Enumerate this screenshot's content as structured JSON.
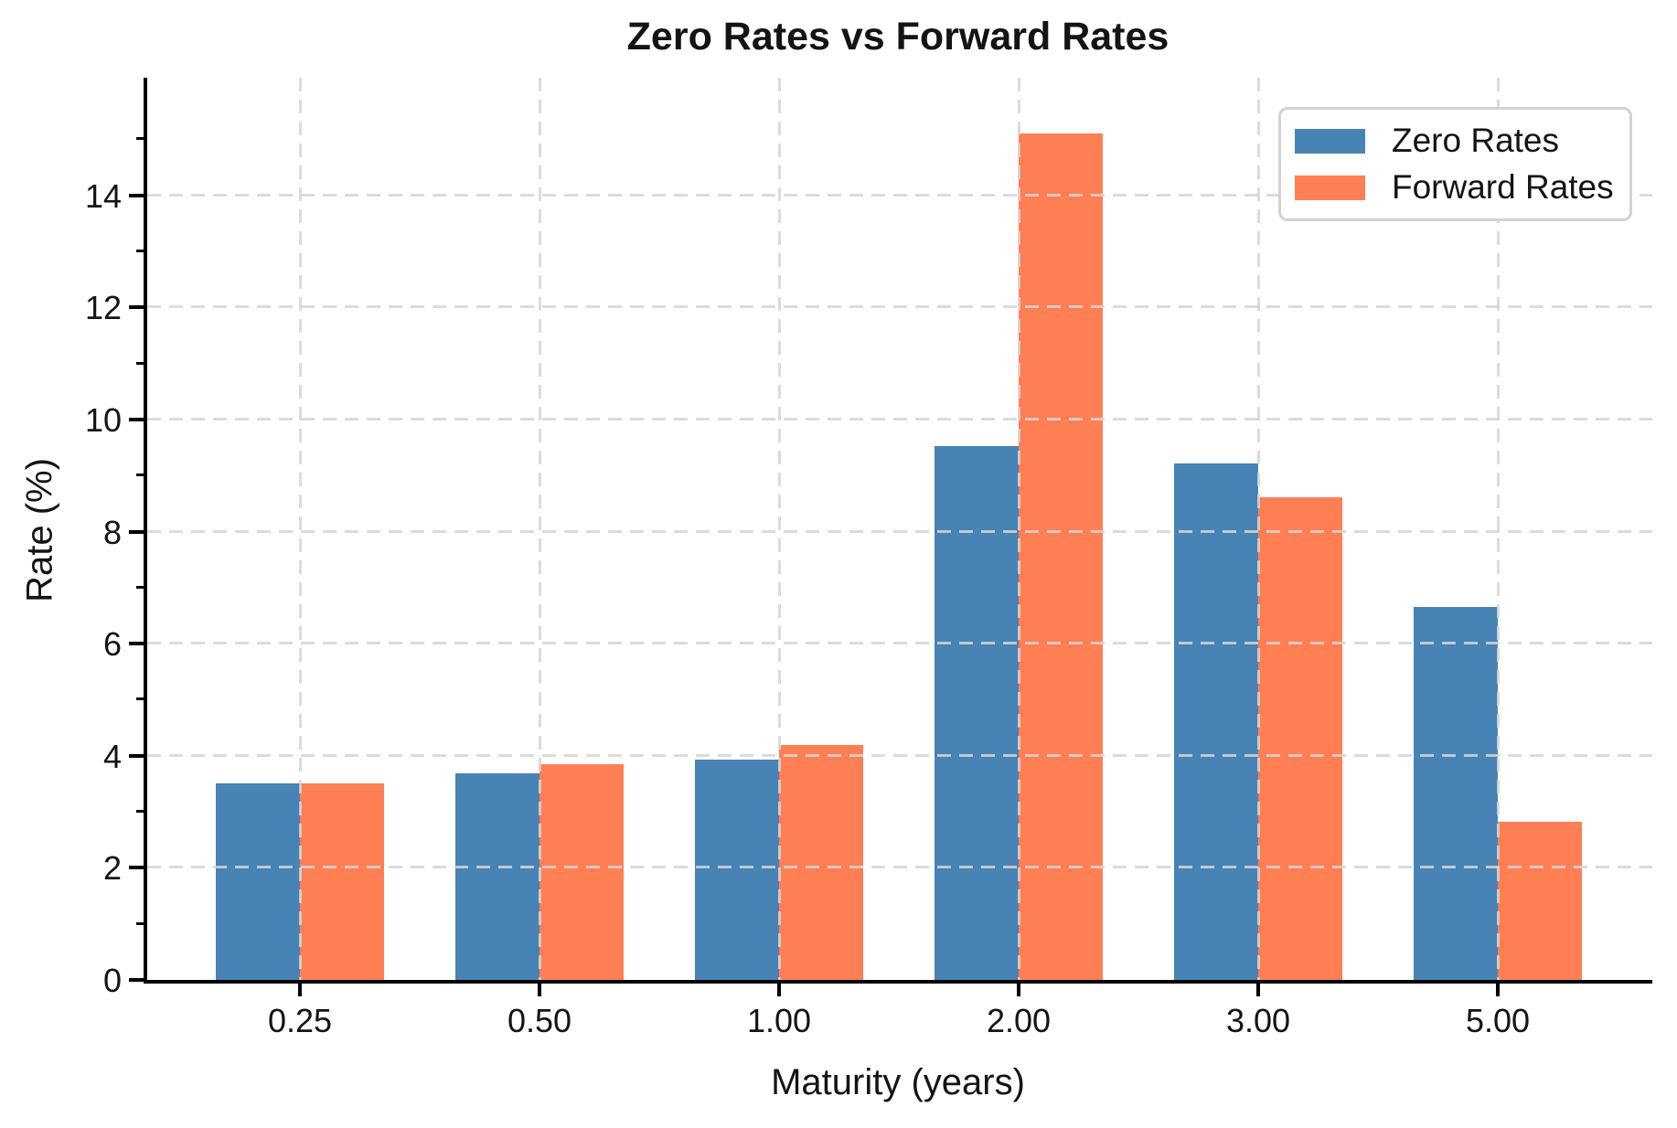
{
  "chart_data": {
    "type": "bar",
    "title": "Zero Rates vs Forward Rates",
    "xlabel": "Maturity (years)",
    "ylabel": "Rate (%)",
    "categories": [
      "0.25",
      "0.50",
      "1.00",
      "2.00",
      "3.00",
      "5.00"
    ],
    "series": [
      {
        "name": "Zero Rates",
        "color": "#4783B5",
        "values": [
          3.5,
          3.68,
          3.93,
          9.52,
          9.21,
          6.65
        ]
      },
      {
        "name": "Forward Rates",
        "color": "#FF7F55",
        "values": [
          3.5,
          3.85,
          4.19,
          15.1,
          8.61,
          2.83
        ]
      }
    ],
    "ylim": [
      0,
      16.1
    ],
    "yticks": [
      0,
      2,
      4,
      6,
      8,
      10,
      12,
      14
    ],
    "yticks_minor": [
      1,
      3,
      5,
      7,
      9,
      11,
      13,
      15
    ],
    "grid": "dashed light-gray, horizontal at major y ticks and vertical at each category, drawn over bars",
    "legend_position": "upper right",
    "bar_group_layout": "two bars per category meeting at tick center"
  }
}
